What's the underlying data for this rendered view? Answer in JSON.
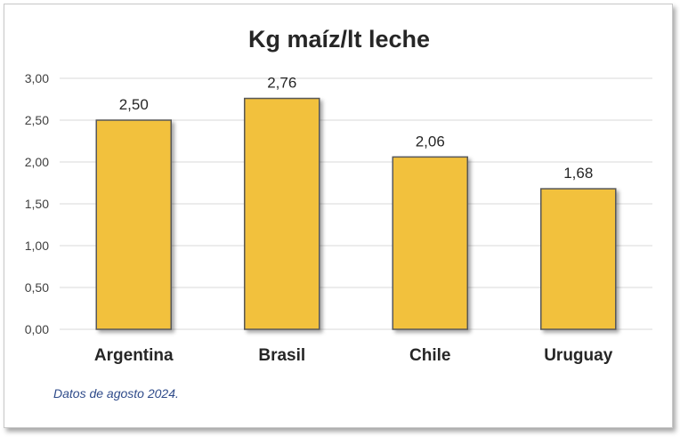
{
  "chart_data": {
    "type": "bar",
    "title": "Kg maíz/lt leche",
    "categories": [
      "Argentina",
      "Brasil",
      "Chile",
      "Uruguay"
    ],
    "values": [
      2.5,
      2.76,
      2.06,
      1.68
    ],
    "data_labels": [
      "2,50",
      "2,76",
      "2,06",
      "1,68"
    ],
    "ylim": [
      0,
      3
    ],
    "y_ticks": [
      "0,00",
      "0,50",
      "1,00",
      "1,50",
      "2,00",
      "2,50",
      "3,00"
    ],
    "xlabel": "",
    "ylabel": "",
    "grid": true,
    "legend": "none",
    "colors": {
      "bar": "#f2c13e",
      "bar_border": "#595959",
      "grid": "#d9d9d9",
      "note": "#2f4b8a"
    }
  },
  "note": "Datos de agosto 2024."
}
